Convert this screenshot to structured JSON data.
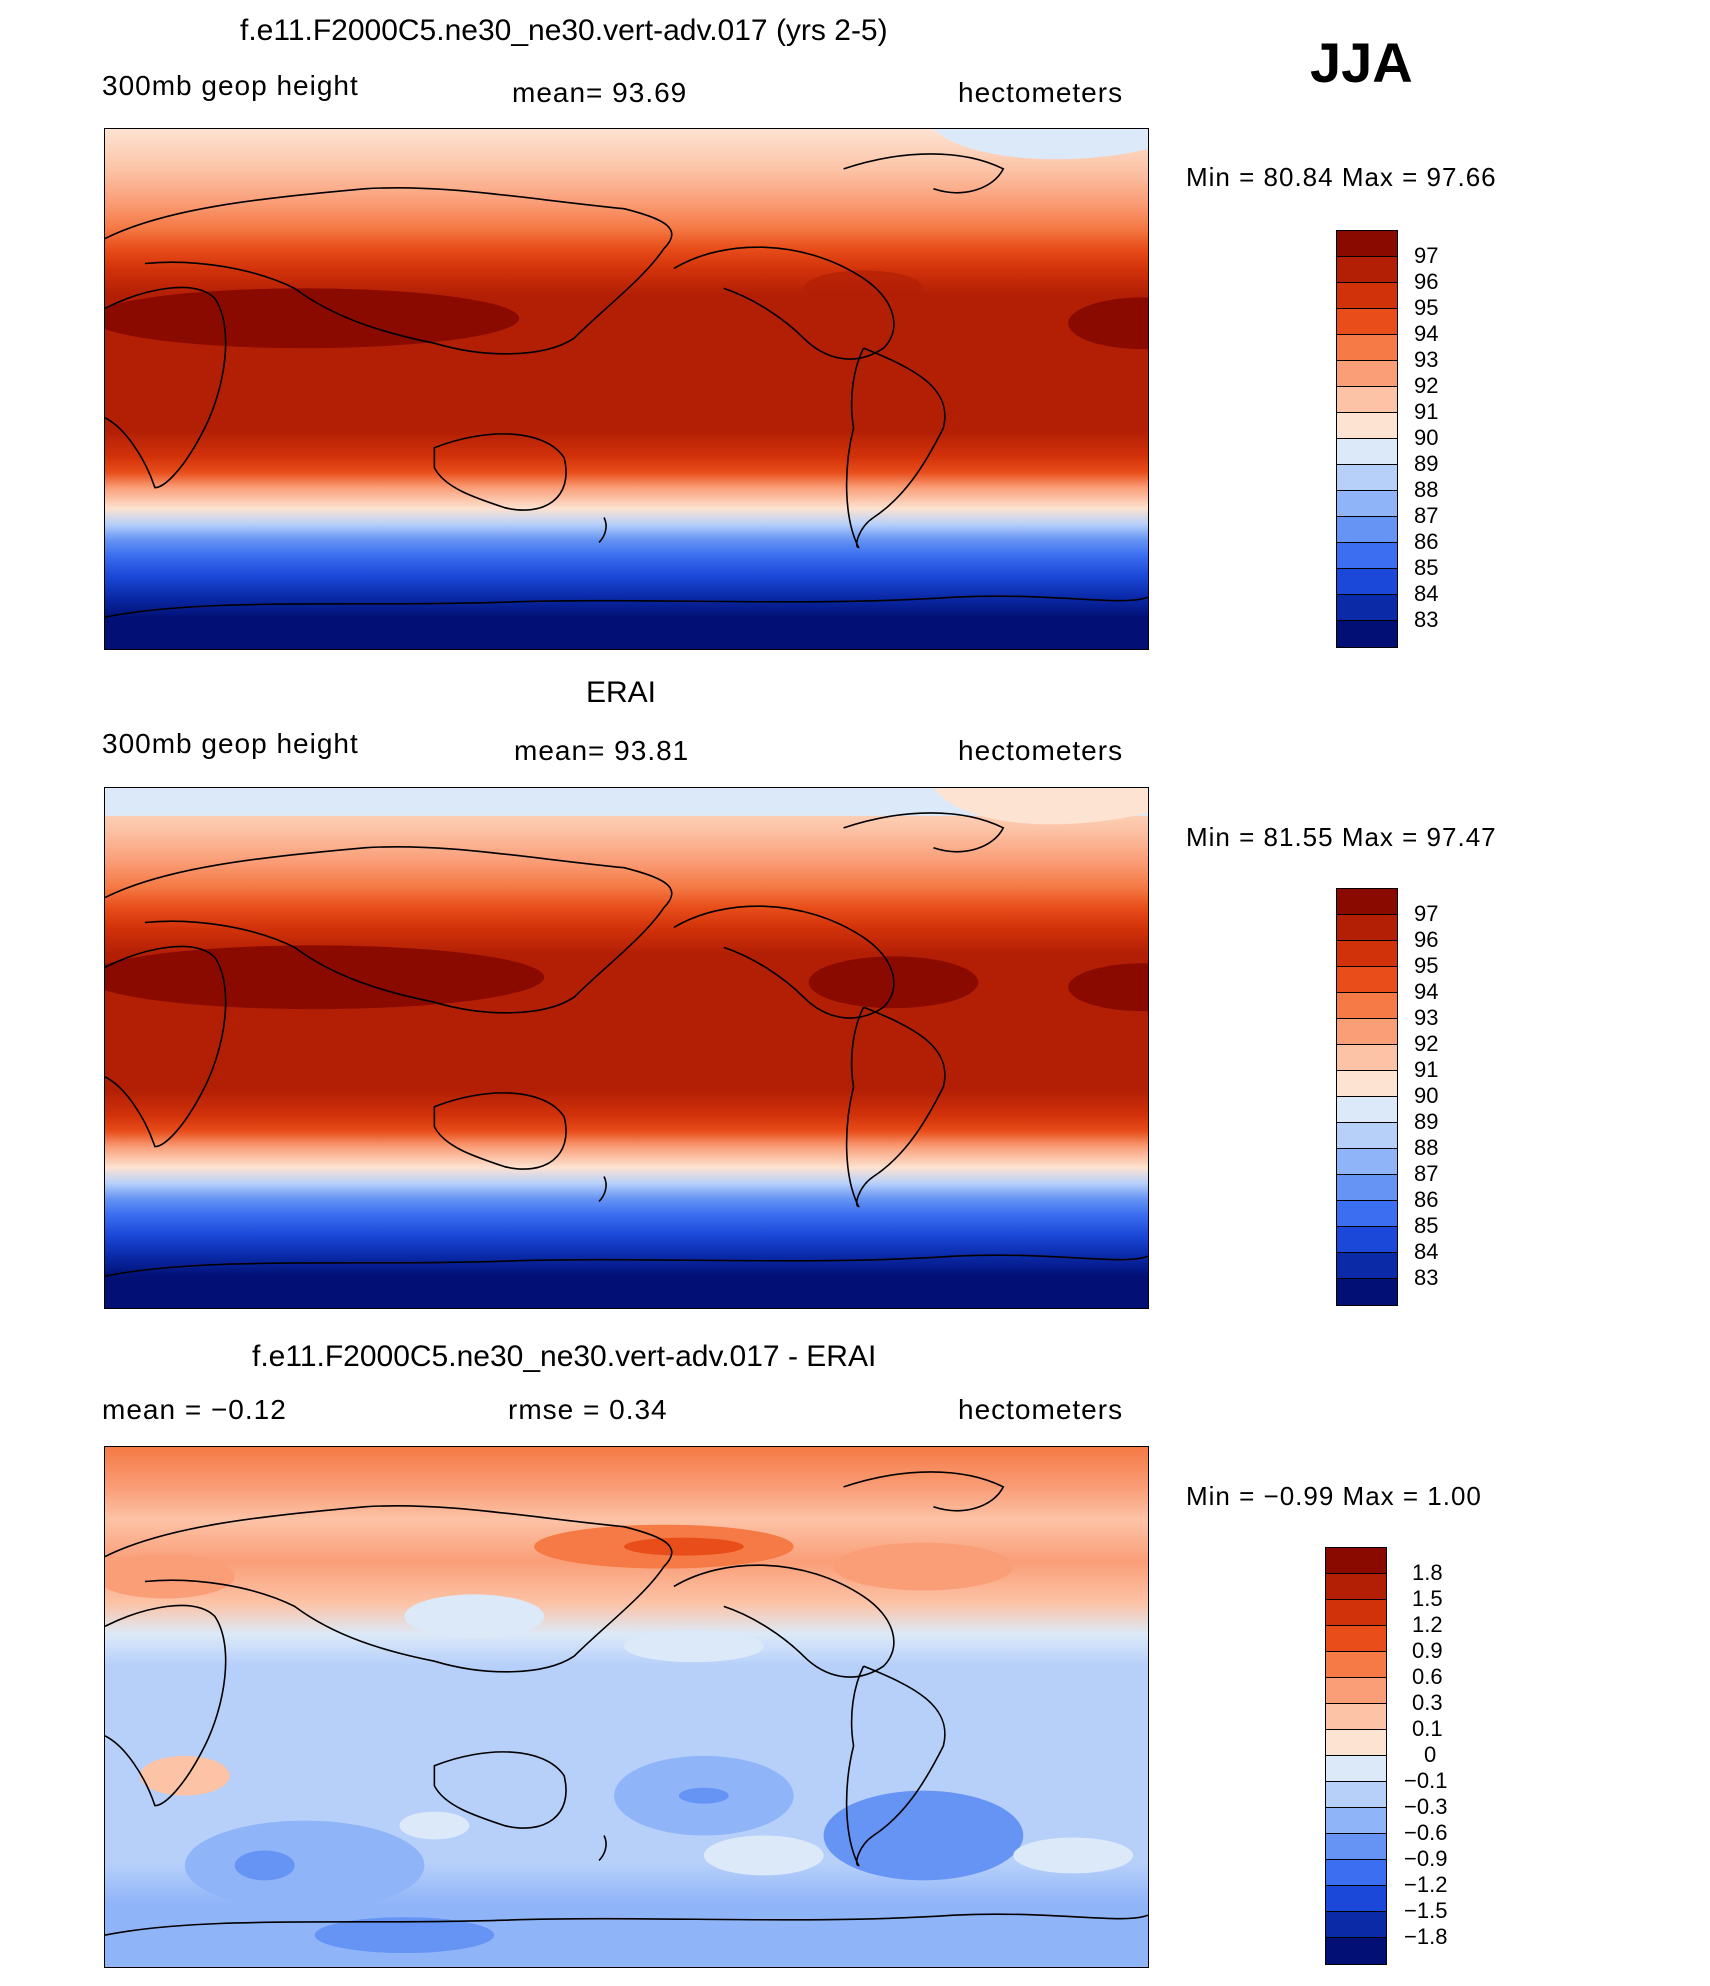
{
  "season": "JJA",
  "panels": [
    {
      "title": "f.e11.F2000C5.ne30_ne30.vert-adv.017 (yrs 2-5)",
      "left_label": "300mb  geop  height",
      "center_label": "mean=   93.69",
      "right_label": "hectometers",
      "minmax": "Min  =    80.84  Max  =    97.66",
      "colorbar": {
        "labels": [
          "97",
          "96",
          "95",
          "94",
          "93",
          "92",
          "91",
          "90",
          "89",
          "88",
          "87",
          "86",
          "85",
          "84",
          "83"
        ],
        "colors": [
          "#8b0a00",
          "#b21f05",
          "#d2320a",
          "#e84d1a",
          "#f57a45",
          "#fa9e78",
          "#fcc3a6",
          "#fde3d1",
          "#dce9f8",
          "#b7d0fa",
          "#8fb4f8",
          "#6694f4",
          "#3b6ef0",
          "#1b48d8",
          "#0a2aa8",
          "#021075"
        ]
      }
    },
    {
      "title": "ERAI",
      "left_label": "300mb  geop  height",
      "center_label": "mean=   93.81",
      "right_label": "hectometers",
      "minmax": "Min  =    81.55  Max  =    97.47",
      "colorbar": {
        "labels": [
          "97",
          "96",
          "95",
          "94",
          "93",
          "92",
          "91",
          "90",
          "89",
          "88",
          "87",
          "86",
          "85",
          "84",
          "83"
        ],
        "colors": [
          "#8b0a00",
          "#b21f05",
          "#d2320a",
          "#e84d1a",
          "#f57a45",
          "#fa9e78",
          "#fcc3a6",
          "#fde3d1",
          "#dce9f8",
          "#b7d0fa",
          "#8fb4f8",
          "#6694f4",
          "#3b6ef0",
          "#1b48d8",
          "#0a2aa8",
          "#021075"
        ]
      }
    },
    {
      "title": "f.e11.F2000C5.ne30_ne30.vert-adv.017 - ERAI",
      "left_label": "mean  =    −0.12",
      "center_label": "rmse  =     0.34",
      "right_label": "hectometers",
      "minmax": "Min  =    −0.99  Max  =     1.00",
      "colorbar": {
        "labels": [
          "1.8",
          "1.5",
          "1.2",
          "0.9",
          "0.6",
          "0.3",
          "0.1",
          "0",
          "−0.1",
          "−0.3",
          "−0.6",
          "−0.9",
          "−1.2",
          "−1.5",
          "−1.8"
        ],
        "colors": [
          "#8b0a00",
          "#b21f05",
          "#d2320a",
          "#e84d1a",
          "#f57a45",
          "#fa9e78",
          "#fcc3a6",
          "#fde3d1",
          "#dce9f8",
          "#b7d0fa",
          "#8fb4f8",
          "#6694f4",
          "#3b6ef0",
          "#1b48d8",
          "#0a2aa8",
          "#021075"
        ]
      }
    }
  ]
}
